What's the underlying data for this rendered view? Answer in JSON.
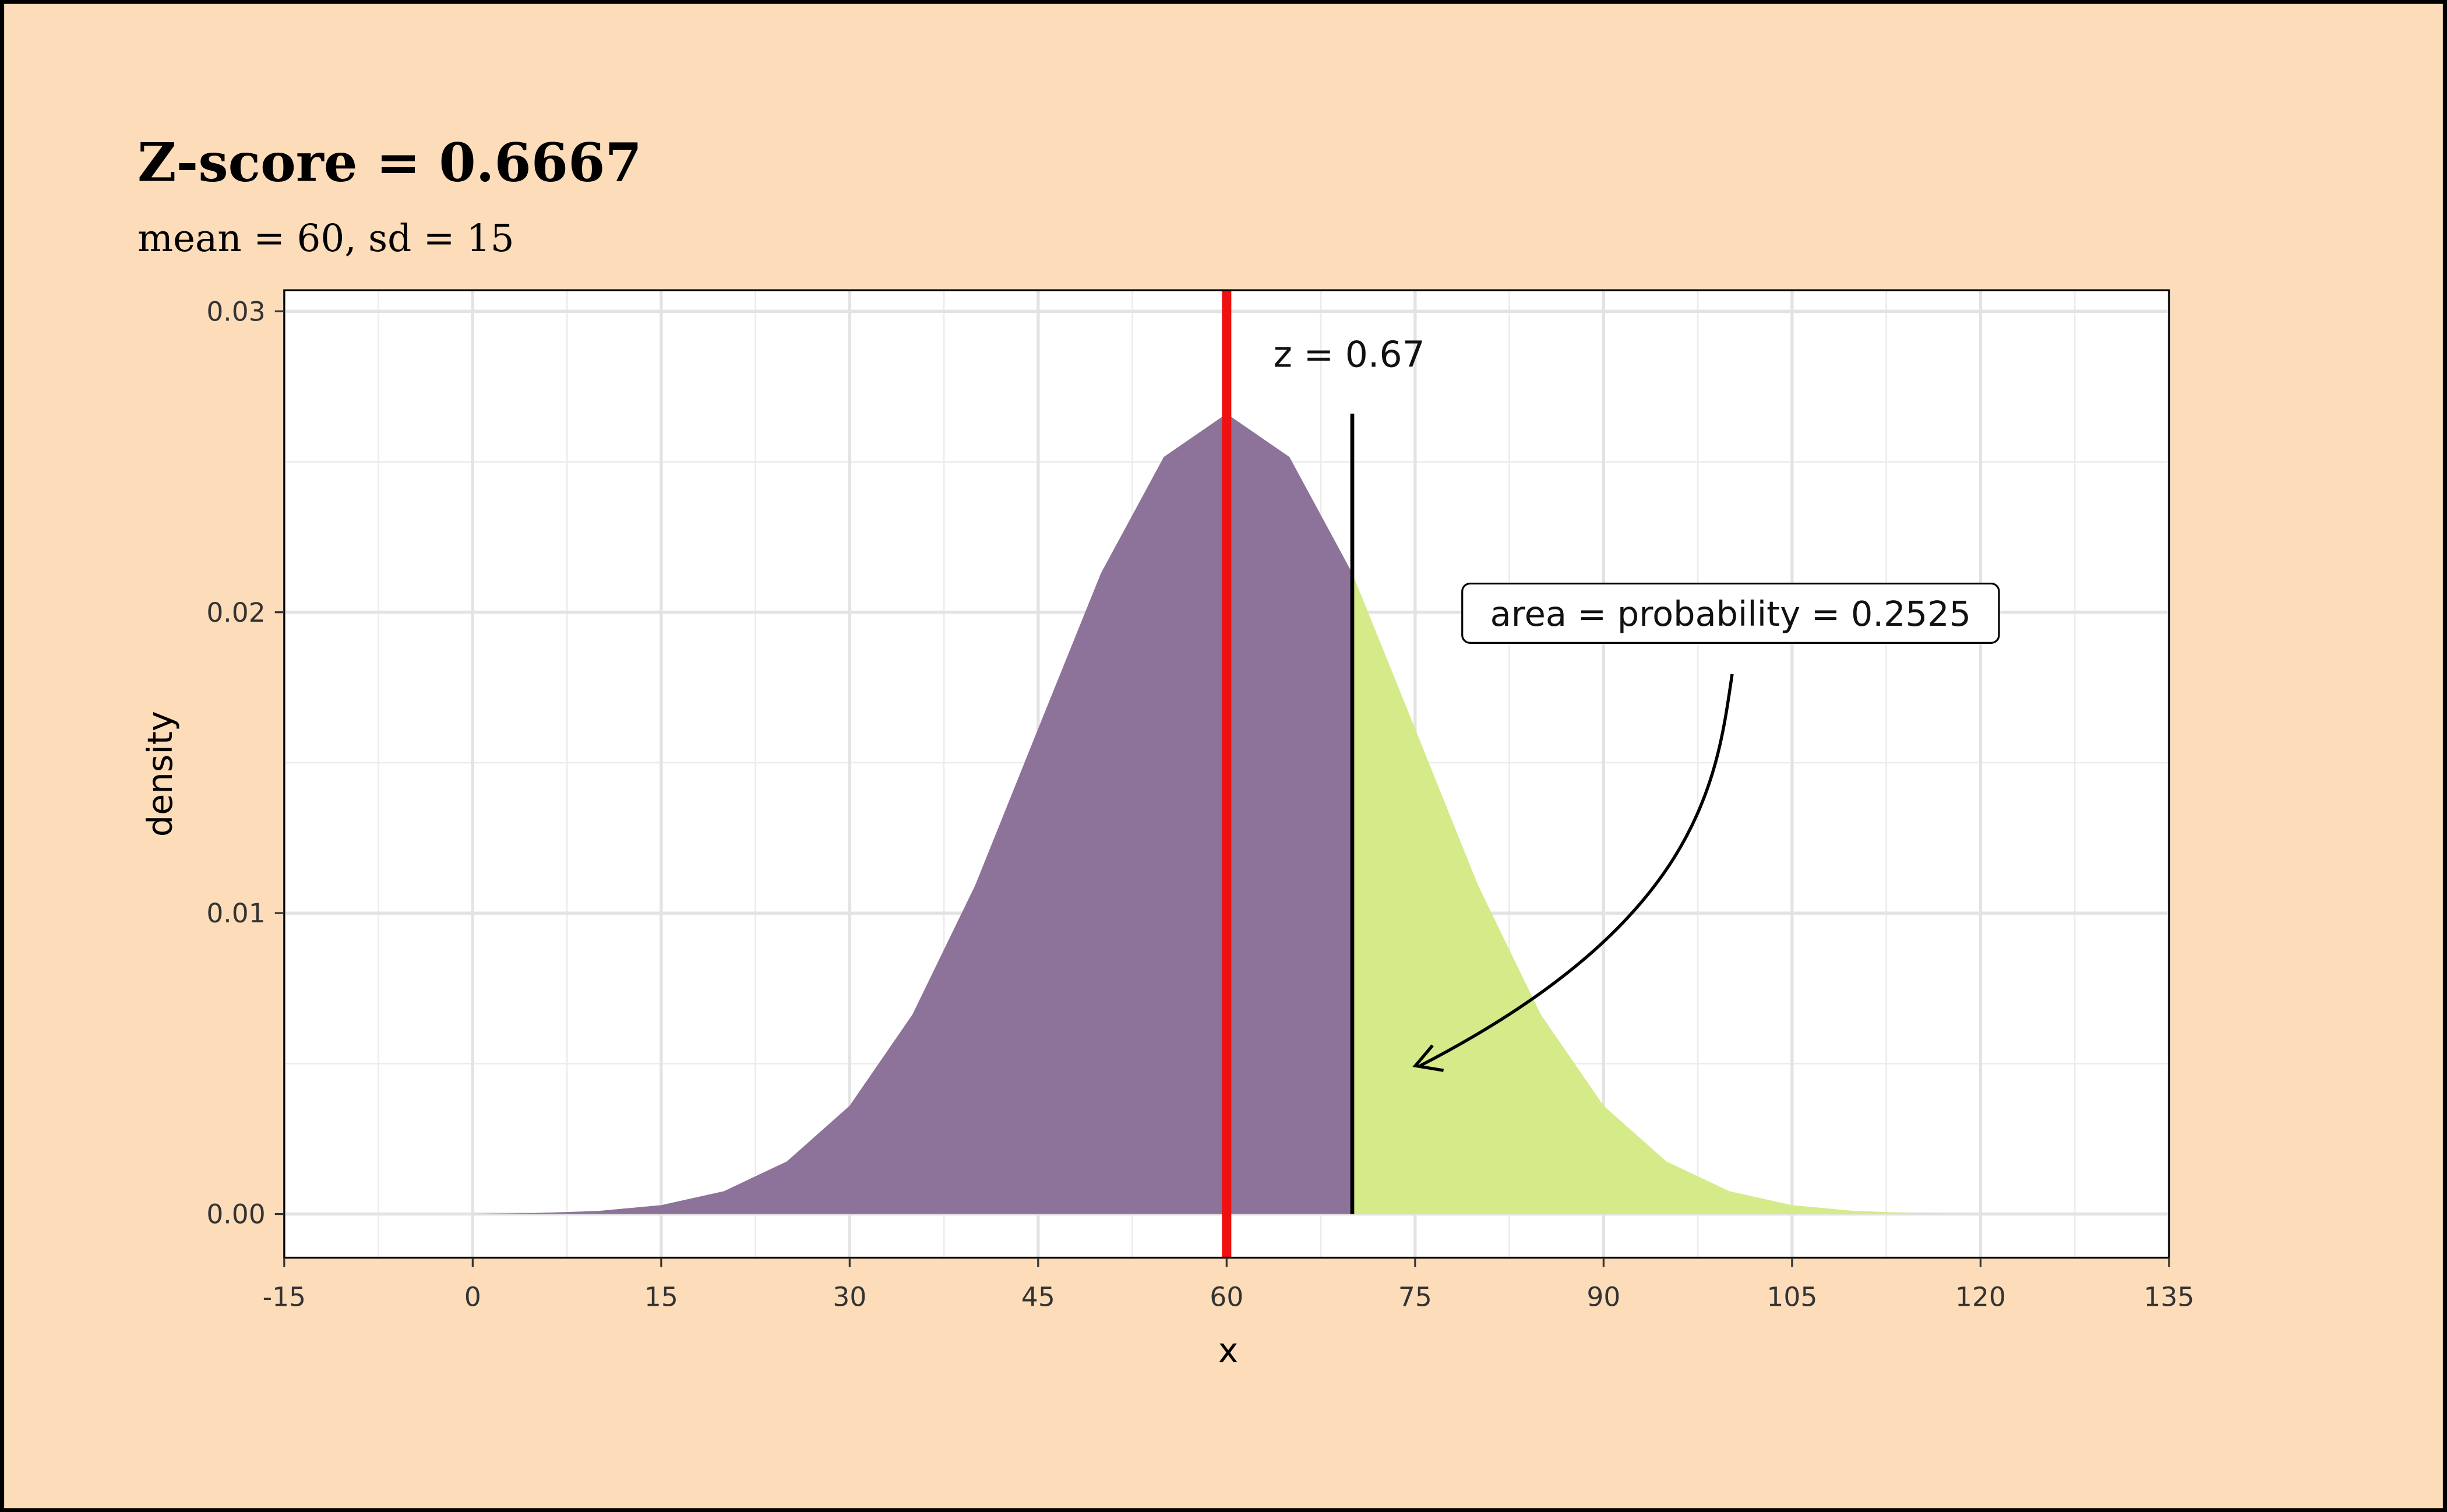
{
  "chart_data": {
    "type": "area",
    "title": "Z-score = 0.6667",
    "subtitle": "mean = 60, sd = 15",
    "xlabel": "x",
    "ylabel": "density",
    "series": [
      {
        "color": "#8d7399",
        "x": [
          0,
          5,
          10,
          15,
          20,
          25,
          30,
          35,
          40,
          45,
          50,
          55,
          60,
          65,
          70
        ],
        "values": [
          8.9e-06,
          3.2e-05,
          0.000103,
          0.000295,
          0.00076,
          0.001748,
          0.0036,
          0.006633,
          0.010934,
          0.01613,
          0.021297,
          0.02516,
          0.026596,
          0.02516,
          0.021297
        ]
      },
      {
        "color": "#d5ea88",
        "x": [
          70,
          75,
          80,
          85,
          90,
          95,
          100,
          105,
          110,
          115,
          120
        ],
        "values": [
          0.021297,
          0.01613,
          0.010934,
          0.006633,
          0.0036,
          0.001748,
          0.00076,
          0.000295,
          0.000103,
          3.2e-05,
          8.9e-06
        ]
      }
    ],
    "mean_line": {
      "x": 60,
      "color": "#ee1111"
    },
    "z_line": {
      "x": 70,
      "ymax": 0.0266,
      "color": "#000000"
    },
    "z_label": "z =  0.67",
    "area_label": "area = probability = 0.2525",
    "xlim": [
      -15,
      135
    ],
    "xticks": [
      -15,
      0,
      15,
      30,
      45,
      60,
      75,
      90,
      105,
      120,
      135
    ],
    "ylim": [
      -0.00145,
      0.0307
    ],
    "yticks": [
      {
        "value": 0,
        "label": "0.00"
      },
      0.01,
      0.02,
      0.03
    ],
    "grid": true
  }
}
